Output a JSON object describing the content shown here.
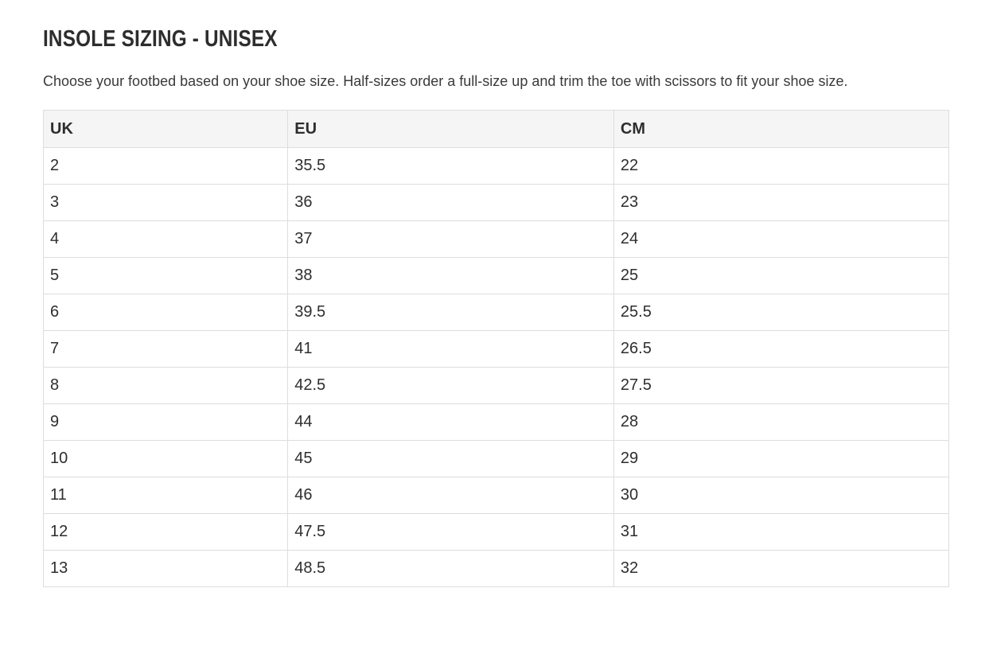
{
  "page": {
    "title": "INSOLE SIZING - UNISEX",
    "description": "Choose your footbed based on your shoe size. Half-sizes order a full-size up and trim the toe with scissors to fit your shoe size."
  },
  "sizing_table": {
    "headers": {
      "uk": "UK",
      "eu": "EU",
      "cm": "CM"
    },
    "rows": [
      {
        "uk": "2",
        "eu": "35.5",
        "cm": "22"
      },
      {
        "uk": "3",
        "eu": "36",
        "cm": "23"
      },
      {
        "uk": "4",
        "eu": "37",
        "cm": "24"
      },
      {
        "uk": "5",
        "eu": "38",
        "cm": "25"
      },
      {
        "uk": "6",
        "eu": "39.5",
        "cm": "25.5"
      },
      {
        "uk": "7",
        "eu": "41",
        "cm": "26.5"
      },
      {
        "uk": "8",
        "eu": "42.5",
        "cm": "27.5"
      },
      {
        "uk": "9",
        "eu": "44",
        "cm": "28"
      },
      {
        "uk": "10",
        "eu": "45",
        "cm": "29"
      },
      {
        "uk": "11",
        "eu": "46",
        "cm": "30"
      },
      {
        "uk": "12",
        "eu": "47.5",
        "cm": "31"
      },
      {
        "uk": "13",
        "eu": "48.5",
        "cm": "32"
      }
    ]
  },
  "colors": {
    "header_bg": "#f5f5f5",
    "border": "#dddddd",
    "text": "#2e2e2e"
  }
}
